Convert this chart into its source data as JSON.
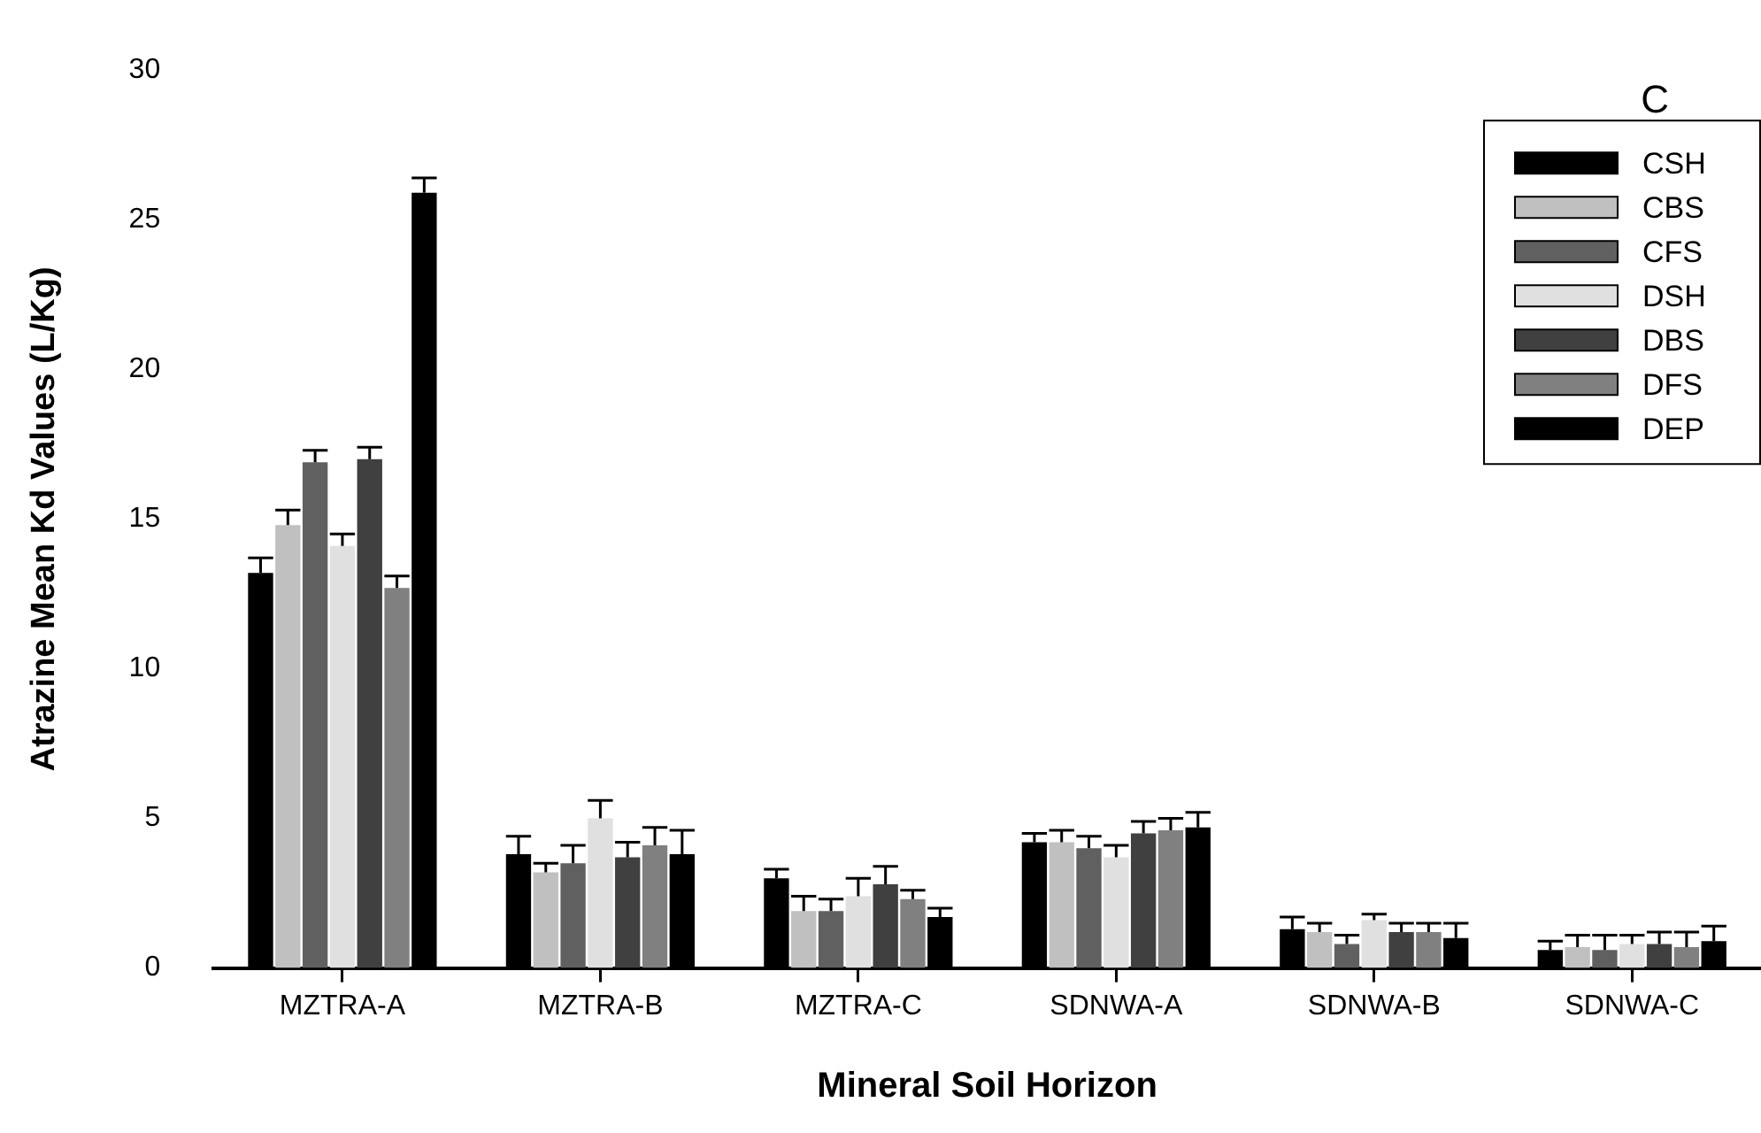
{
  "chart_data": {
    "type": "bar",
    "xlabel": "Mineral Soil Horizon",
    "ylabel": "Atrazine Mean Kd Values (L/Kg)",
    "annotations": [
      "C"
    ],
    "categories": [
      "MZTRA-A",
      "MZTRA-B",
      "MZTRA-C",
      "SDNWA-A",
      "SDNWA-B",
      "SDNWA-C"
    ],
    "series": [
      {
        "name": "CSH",
        "color": "#000000",
        "values": [
          13.2,
          3.8,
          3.0,
          4.2,
          1.3,
          0.6
        ],
        "errors": [
          [
            13.2,
            13.7
          ],
          [
            3.8,
            4.4
          ],
          [
            3.0,
            3.3
          ],
          [
            4.2,
            4.5
          ],
          [
            1.3,
            1.7
          ],
          [
            0.6,
            0.9
          ]
        ]
      },
      {
        "name": "CBS",
        "color": "#c0c0c0",
        "values": [
          14.8,
          3.2,
          1.9,
          4.2,
          1.2,
          0.7
        ],
        "errors": [
          [
            14.8,
            15.3
          ],
          [
            3.2,
            3.5
          ],
          [
            1.9,
            2.4
          ],
          [
            4.2,
            4.6
          ],
          [
            1.2,
            1.5
          ],
          [
            0.7,
            1.1
          ]
        ]
      },
      {
        "name": "CFS",
        "color": "#606060",
        "values": [
          16.9,
          3.5,
          1.9,
          4.0,
          0.8,
          0.6
        ],
        "errors": [
          [
            16.9,
            17.3
          ],
          [
            3.5,
            4.1
          ],
          [
            1.9,
            2.3
          ],
          [
            4.0,
            4.4
          ],
          [
            0.8,
            1.1
          ],
          [
            0.6,
            1.1
          ]
        ]
      },
      {
        "name": "DSH",
        "color": "#e0e0e0",
        "values": [
          14.1,
          5.0,
          2.4,
          3.7,
          1.6,
          0.8
        ],
        "errors": [
          [
            14.1,
            14.5
          ],
          [
            5.0,
            5.6
          ],
          [
            2.4,
            3.0
          ],
          [
            3.7,
            4.1
          ],
          [
            1.6,
            1.8
          ],
          [
            0.8,
            1.1
          ]
        ]
      },
      {
        "name": "DBS",
        "color": "#404040",
        "values": [
          17.0,
          3.7,
          2.8,
          4.5,
          1.2,
          0.8
        ],
        "errors": [
          [
            17.0,
            17.4
          ],
          [
            3.7,
            4.2
          ],
          [
            2.8,
            3.4
          ],
          [
            4.5,
            4.9
          ],
          [
            1.2,
            1.5
          ],
          [
            0.8,
            1.2
          ]
        ]
      },
      {
        "name": "DFS",
        "color": "#808080",
        "values": [
          12.7,
          4.1,
          2.3,
          4.6,
          1.2,
          0.7
        ],
        "errors": [
          [
            12.7,
            13.1
          ],
          [
            4.1,
            4.7
          ],
          [
            2.3,
            2.6
          ],
          [
            4.6,
            5.0
          ],
          [
            1.2,
            1.5
          ],
          [
            0.7,
            1.2
          ]
        ]
      },
      {
        "name": "DEP",
        "color": "#000000",
        "values": [
          25.9,
          3.8,
          1.7,
          4.7,
          1.0,
          0.9
        ],
        "errors": [
          [
            25.9,
            26.4
          ],
          [
            3.8,
            4.6
          ],
          [
            1.7,
            2.0
          ],
          [
            4.7,
            5.2
          ],
          [
            1.0,
            1.5
          ],
          [
            0.9,
            1.4
          ]
        ]
      }
    ],
    "ylim": [
      0,
      30
    ],
    "yticks": [
      0,
      5,
      10,
      15,
      20,
      25,
      30
    ],
    "grid": false,
    "legend": "top right"
  }
}
